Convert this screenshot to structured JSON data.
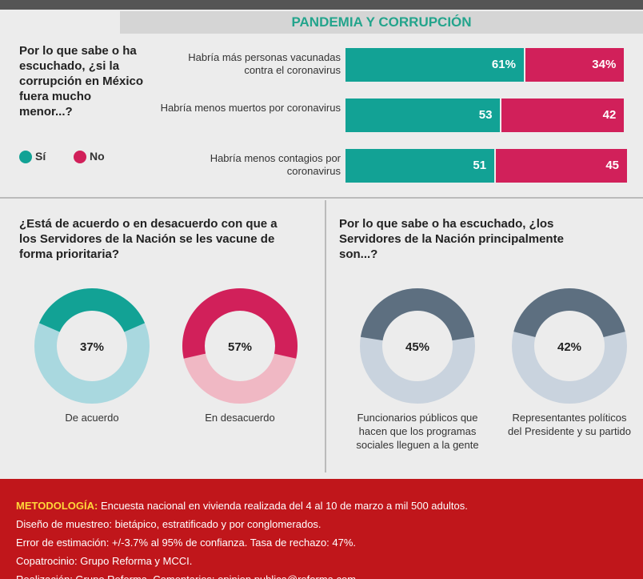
{
  "title": "PANDEMIA Y CORRUPCIÓN",
  "chart_data": [
    {
      "type": "bar",
      "orientation": "horizontal",
      "stacked": true,
      "title": "Por lo que sabe o ha escuchado, ¿si la corrupción en México fuera mucho menor...?",
      "categories": [
        "Habría más personas vacunadas contra el coronavirus",
        "Habría menos muertos por coronavirus",
        "Habría menos contagios por coronavirus"
      ],
      "series": [
        {
          "name": "Sí",
          "color": "#12a295",
          "values": [
            61,
            53,
            51
          ],
          "value_labels": [
            "61%",
            "53",
            "51"
          ]
        },
        {
          "name": "No",
          "color": "#d1205a",
          "values": [
            34,
            42,
            45
          ],
          "value_labels": [
            "34%",
            "42",
            "45"
          ]
        }
      ],
      "xlim": [
        0,
        96
      ]
    },
    {
      "type": "donut",
      "title": "¿Está de acuerdo o en desacuerdo con que a los Servidores de la Nación se les vacune de forma prioritaria?",
      "categories": [
        "De acuerdo",
        "En desacuerdo"
      ],
      "values": [
        37,
        57
      ],
      "value_labels": [
        "37%",
        "57%"
      ],
      "colors": [
        "#12a295",
        "#d1205a"
      ],
      "track_colors": [
        "#a9d8df",
        "#f0b8c4"
      ]
    },
    {
      "type": "donut",
      "title": "Por lo que sabe o ha escuchado, ¿los Servidores de la Nación principalmente son...?",
      "categories": [
        "Funcionarios públicos que hacen que los programas sociales lleguen a la gente",
        "Representantes políticos del Presidente y su partido"
      ],
      "values": [
        45,
        42
      ],
      "value_labels": [
        "45%",
        "42%"
      ],
      "colors": [
        "#5d6f80",
        "#5d6f80"
      ],
      "track_colors": [
        "#c9d3de",
        "#c9d3de"
      ]
    }
  ],
  "methodology": {
    "label": "METODOLOGÍA:",
    "lines": [
      "Encuesta nacional en vivienda realizada del 4 al 10 de marzo a mil 500 adultos.",
      "Diseño de muestreo: bietápico, estratificado y por conglomerados.",
      "Error de estimación: +/-3.7% al 95% de confianza. Tasa de rechazo: 47%.",
      "Copatrocinio: Grupo Reforma y MCCI.",
      "Realización: Grupo Reforma. Comentarios: opinion.publica@reforma.com"
    ]
  }
}
